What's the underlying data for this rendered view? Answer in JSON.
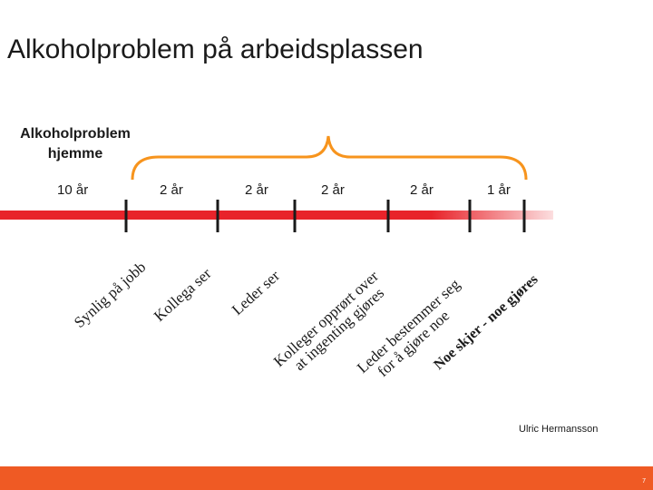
{
  "title": "Alkoholproblem på arbeidsplassen",
  "subtitle_label": "Alkoholproblem hjemme",
  "durations": [
    "10 år",
    "2 år",
    "2 år",
    "2 år",
    "2 år",
    "1 år"
  ],
  "stages": [
    "Synlig på jobb",
    "Kollega ser",
    "Leder ser",
    "Kolleger opprørt over at ingenting gjøres",
    "Leder bestemmer seg for å gjøre noe",
    "Noe skjer - noe gjøres"
  ],
  "author": "Ulric Hermansson",
  "page_number": "7",
  "colors": {
    "timeline": "#e8232a",
    "footer": "#ef5a24",
    "text": "#1a1a1a"
  }
}
